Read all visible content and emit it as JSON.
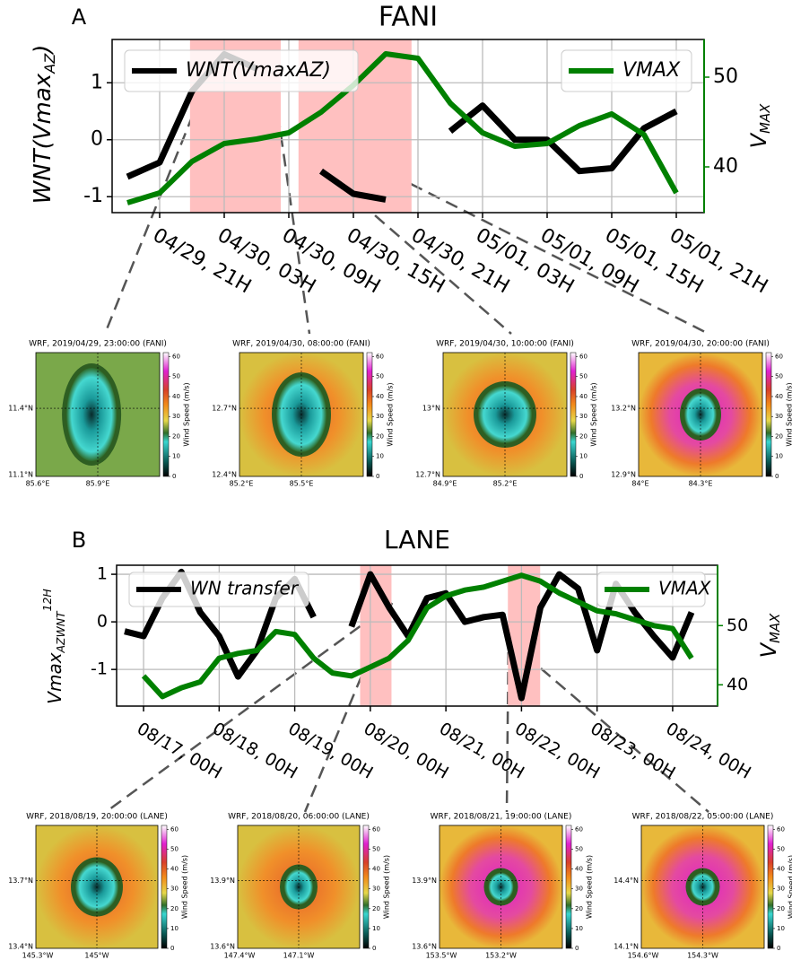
{
  "chart_data": [
    {
      "type": "line",
      "panel_label": "A",
      "title": "FANI",
      "ylabel": {
        "text": "WNT(Vmax",
        "sub": "AZ",
        "tail": ")"
      },
      "y2label": {
        "text": "V",
        "sub": "MAX"
      },
      "categories": [
        null,
        "04/29, 21H",
        null,
        "04/30, 03H",
        null,
        "04/30, 09H",
        null,
        "04/30, 15H",
        null,
        "04/30, 21H",
        null,
        "05/01, 03H",
        null,
        "05/01, 09H",
        null,
        "05/01, 15H",
        null,
        "05/01, 21H"
      ],
      "series": [
        {
          "name": "WNT(VmaxAZ)",
          "color": "#000000",
          "legend": "upper left",
          "values": [
            -0.65,
            -0.4,
            0.85,
            1.5,
            1.25,
            null,
            -0.55,
            -0.95,
            -1.05,
            null,
            0.15,
            0.6,
            0.0,
            0,
            -0.55,
            -0.5,
            0.2,
            0.5
          ]
        },
        {
          "name": "VMAX",
          "color": "#008000",
          "axis": "y2",
          "legend": "upper right",
          "values": [
            36,
            37.1,
            40.6,
            42.6,
            43.1,
            43.8,
            46.1,
            49.1,
            52.6,
            52.1,
            47.1,
            43.8,
            42.3,
            42.6,
            44.6,
            45.9,
            43.6,
            37.1
          ]
        }
      ],
      "shaded_spans": [
        [
          1.94,
          4.75
        ],
        [
          5.3,
          8.8
        ]
      ],
      "shade_color": "#ffc0c0",
      "ylim": [
        -1.28,
        1.76
      ],
      "yticks": [
        -1,
        0,
        1
      ],
      "y2lim": [
        34.9,
        54.2
      ],
      "y2ticks": [
        40,
        50
      ],
      "grid": true
    },
    {
      "type": "line",
      "panel_label": "B",
      "title": "LANE",
      "ylabel": {
        "text": "Vmax",
        "sub": "AZWNT",
        "sup": "12H"
      },
      "y2label": {
        "text": "V",
        "sub": "MAX"
      },
      "categories": [
        null,
        "08/17, 00H",
        null,
        null,
        null,
        "08/18, 00H",
        null,
        null,
        null,
        "08/19, 00H",
        null,
        null,
        null,
        "08/20, 00H",
        null,
        null,
        null,
        "08/21, 00H",
        null,
        null,
        null,
        "08/22, 00H",
        null,
        null,
        null,
        "08/23, 00H",
        null,
        null,
        null,
        "08/24, 00H",
        null
      ],
      "series": [
        {
          "name": "WN transfer",
          "color": "#000000",
          "legend": "upper left",
          "values": [
            -0.2,
            -0.3,
            0.5,
            1.05,
            0.2,
            -0.3,
            -1.15,
            -0.6,
            0.5,
            0.9,
            0.1,
            null,
            -0.1,
            1.0,
            0.3,
            -0.3,
            0.5,
            0.6,
            0.0,
            0.1,
            0.15,
            -1.6,
            0.3,
            1.0,
            0.7,
            -0.6,
            0.8,
            0.2,
            -0.3,
            -0.75,
            0.2
          ]
        },
        {
          "name": "VMAX",
          "color": "#008000",
          "axis": "y2",
          "legend": "upper right",
          "values": [
            null,
            41.5,
            38.0,
            39.5,
            40.5,
            44.5,
            45.3,
            45.8,
            49.0,
            48.5,
            44.5,
            42.0,
            41.5,
            43.0,
            44.5,
            47.5,
            53.0,
            55.0,
            56.0,
            56.5,
            57.5,
            58.5,
            57.5,
            55.5,
            54.0,
            52.5,
            52.0,
            51.0,
            50.0,
            49.5,
            44.5
          ]
        }
      ],
      "shaded_spans": [
        [
          12.46,
          14.12
        ],
        [
          20.28,
          21.99
        ]
      ],
      "shade_color": "#ffc0c0",
      "ylim": [
        -1.77,
        1.19
      ],
      "yticks": [
        -1,
        0,
        1
      ],
      "y2lim": [
        36.4,
        60.2
      ],
      "y2ticks": [
        40,
        50
      ],
      "grid": true
    }
  ],
  "colorbar": {
    "label": "Wind Speed (m/s)",
    "ticks": [
      0,
      10,
      20,
      30,
      40,
      50,
      60
    ],
    "lim": [
      0,
      62
    ]
  },
  "maps": [
    {
      "title": "WRF, 2019/04/29, 23:00:00 (FANI)",
      "lat": [
        "11.4°N",
        "11.1°N"
      ],
      "lon": [
        "85.6°E",
        "85.9°E"
      ]
    },
    {
      "title": "WRF, 2019/04/30, 08:00:00 (FANI)",
      "lat": [
        "12.7°N",
        "12.4°N"
      ],
      "lon": [
        "85.2°E",
        "85.5°E"
      ]
    },
    {
      "title": "WRF, 2019/04/30, 10:00:00 (FANI)",
      "lat": [
        "13°N",
        "12.7°N"
      ],
      "lon": [
        "84.9°E",
        "85.2°E"
      ]
    },
    {
      "title": "WRF, 2019/04/30, 20:00:00 (FANI)",
      "lat": [
        "13.2°N",
        "12.9°N"
      ],
      "lon": [
        "84°E",
        "84.3°E"
      ]
    },
    {
      "title": "WRF, 2018/08/19, 20:00:00 (LANE)",
      "lat": [
        "13.7°N",
        "13.4°N"
      ],
      "lon": [
        "145.3°W",
        "145°W"
      ]
    },
    {
      "title": "WRF, 2018/08/20, 06:00:00 (LANE)",
      "lat": [
        "13.9°N",
        "13.6°N"
      ],
      "lon": [
        "147.4°W",
        "147.1°W"
      ]
    },
    {
      "title": "WRF, 2018/08/21, 19:00:00 (LANE)",
      "lat": [
        "13.9°N",
        "13.6°N"
      ],
      "lon": [
        "153.5°W",
        "153.2°W"
      ]
    },
    {
      "title": "WRF, 2018/08/22, 05:00:00 (LANE)",
      "lat": [
        "14.4°N",
        "14.1°N"
      ],
      "lon": [
        "154.6°W",
        "154.3°W"
      ]
    }
  ]
}
